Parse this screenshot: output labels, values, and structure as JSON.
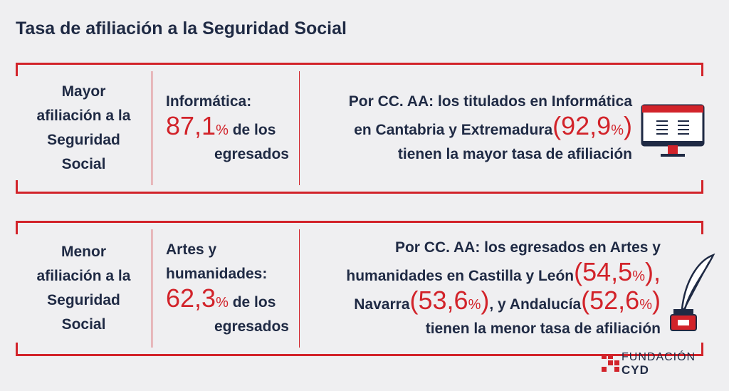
{
  "title": "Tasa de afiliación a la Seguridad Social",
  "panels": [
    {
      "label": [
        "Mayor",
        "afiliación a la",
        "Seguridad",
        "Social"
      ],
      "field": [
        "Informática:"
      ],
      "value": "87,1",
      "unit": "%",
      "suffix": [
        "de los",
        "egresados"
      ],
      "detail": [
        [
          {
            "text": "Por CC. AA: los titulados en Informática",
            "style": "plain"
          }
        ],
        [
          {
            "text": "en Cantabria y Extremadura",
            "style": "plain"
          },
          {
            "text": "(92,9",
            "style": "big"
          },
          {
            "text": "%",
            "style": "unit"
          },
          {
            "text": ")",
            "style": "big"
          }
        ],
        [
          {
            "text": "tienen la mayor tasa de afiliación",
            "style": "plain"
          }
        ]
      ],
      "icon": "monitor"
    },
    {
      "label": [
        "Menor",
        "afiliación a la",
        "Seguridad",
        "Social"
      ],
      "field": [
        "Artes y",
        "humanidades:"
      ],
      "value": "62,3",
      "unit": "%",
      "suffix": [
        "de los",
        "egresados"
      ],
      "detail": [
        [
          {
            "text": "Por CC. AA: los egresados en Artes y",
            "style": "plain"
          }
        ],
        [
          {
            "text": "humanidades en Castilla y León",
            "style": "plain"
          },
          {
            "text": "(54,5",
            "style": "big"
          },
          {
            "text": "%",
            "style": "unit"
          },
          {
            "text": "),",
            "style": "big"
          }
        ],
        [
          {
            "text": "Navarra",
            "style": "plain"
          },
          {
            "text": "(53,6",
            "style": "big"
          },
          {
            "text": "%",
            "style": "unit"
          },
          {
            "text": ")",
            "style": "big"
          },
          {
            "text": ", y Andalucía",
            "style": "plain"
          },
          {
            "text": "(52,6",
            "style": "big"
          },
          {
            "text": "%",
            "style": "unit"
          },
          {
            "text": ")",
            "style": "big"
          }
        ],
        [
          {
            "text": "tienen la menor tasa de afiliación",
            "style": "plain"
          }
        ]
      ],
      "icon": "inkwell"
    }
  ],
  "logo": {
    "line1": "FUNDACIÓN",
    "line2": "CYD"
  }
}
